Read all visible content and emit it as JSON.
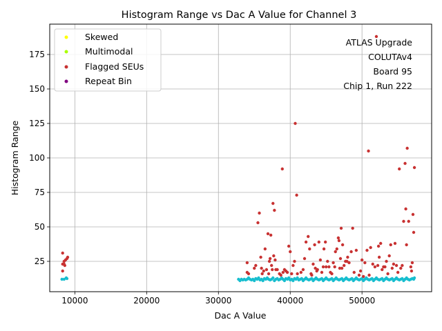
{
  "chart_data": {
    "type": "scatter",
    "title": "Histogram Range vs Dac A Value for Channel 3",
    "xlabel": "Dac A Value",
    "ylabel": "Histogram Range",
    "xlim": [
      6500,
      59700
    ],
    "ylim": [
      3,
      197
    ],
    "xticks": [
      10000,
      20000,
      30000,
      40000,
      50000
    ],
    "xtick_labels": [
      "10000",
      "20000",
      "30000",
      "40000",
      "50000"
    ],
    "yticks": [
      25,
      50,
      75,
      100,
      125,
      150,
      175
    ],
    "ytick_labels": [
      "25",
      "50",
      "75",
      "100",
      "125",
      "150",
      "175"
    ],
    "grid": true,
    "legend_position": "upper-left",
    "annotation": [
      "ATLAS Upgrade",
      "COLUTAv4",
      "Board 95",
      "Chip 1, Run 222"
    ],
    "series": [
      {
        "name": "Skewed",
        "color": "#ffff00",
        "points": []
      },
      {
        "name": "Multimodal",
        "color": "#aaff00",
        "points": []
      },
      {
        "name": "Flagged SEUs",
        "color": "#c83232",
        "points": [
          [
            8300,
            31
          ],
          [
            8300,
            23
          ],
          [
            8300,
            18
          ],
          [
            8500,
            25
          ],
          [
            8500,
            23
          ],
          [
            8600,
            22
          ],
          [
            8700,
            26
          ],
          [
            8900,
            27
          ],
          [
            9000,
            28
          ],
          [
            34000,
            24
          ],
          [
            34000,
            17
          ],
          [
            34200,
            16
          ],
          [
            35000,
            20
          ],
          [
            35200,
            22
          ],
          [
            35500,
            53
          ],
          [
            35700,
            60
          ],
          [
            35900,
            28
          ],
          [
            36000,
            20
          ],
          [
            36100,
            16
          ],
          [
            36300,
            18
          ],
          [
            36500,
            34
          ],
          [
            36700,
            19
          ],
          [
            36900,
            45
          ],
          [
            37000,
            16
          ],
          [
            37100,
            25
          ],
          [
            37200,
            27
          ],
          [
            37300,
            44
          ],
          [
            37400,
            22
          ],
          [
            37500,
            19
          ],
          [
            37600,
            67
          ],
          [
            37700,
            29
          ],
          [
            37800,
            62
          ],
          [
            37900,
            26
          ],
          [
            38000,
            19
          ],
          [
            38200,
            19
          ],
          [
            38500,
            16
          ],
          [
            38700,
            15
          ],
          [
            38900,
            92
          ],
          [
            39000,
            17
          ],
          [
            39200,
            19
          ],
          [
            39400,
            18
          ],
          [
            39600,
            17
          ],
          [
            39800,
            36
          ],
          [
            40000,
            32
          ],
          [
            40200,
            16
          ],
          [
            40400,
            22
          ],
          [
            40600,
            25
          ],
          [
            40700,
            125
          ],
          [
            40900,
            73
          ],
          [
            41000,
            16
          ],
          [
            41500,
            17
          ],
          [
            41800,
            19
          ],
          [
            42000,
            27
          ],
          [
            42200,
            39
          ],
          [
            42500,
            43
          ],
          [
            42700,
            34
          ],
          [
            42900,
            16
          ],
          [
            43000,
            15
          ],
          [
            43200,
            23
          ],
          [
            43400,
            37
          ],
          [
            43500,
            20
          ],
          [
            43700,
            18
          ],
          [
            43800,
            19
          ],
          [
            44000,
            39
          ],
          [
            44200,
            26
          ],
          [
            44400,
            17
          ],
          [
            44600,
            21
          ],
          [
            44700,
            34
          ],
          [
            44900,
            39
          ],
          [
            45000,
            21
          ],
          [
            45200,
            25
          ],
          [
            45400,
            21
          ],
          [
            45600,
            17
          ],
          [
            45800,
            16
          ],
          [
            46000,
            24
          ],
          [
            46200,
            21
          ],
          [
            46300,
            32
          ],
          [
            46500,
            34
          ],
          [
            46700,
            42
          ],
          [
            46800,
            40
          ],
          [
            46900,
            20
          ],
          [
            47000,
            27
          ],
          [
            47100,
            49
          ],
          [
            47200,
            20
          ],
          [
            47300,
            37
          ],
          [
            47500,
            22
          ],
          [
            47700,
            25
          ],
          [
            47900,
            25
          ],
          [
            48000,
            28
          ],
          [
            48200,
            24
          ],
          [
            48500,
            32
          ],
          [
            48700,
            49
          ],
          [
            48900,
            17
          ],
          [
            49200,
            33
          ],
          [
            49600,
            15
          ],
          [
            49800,
            18
          ],
          [
            50000,
            26
          ],
          [
            50200,
            14
          ],
          [
            50400,
            24
          ],
          [
            50700,
            33
          ],
          [
            50900,
            105
          ],
          [
            51000,
            15
          ],
          [
            51200,
            35
          ],
          [
            51500,
            23
          ],
          [
            51800,
            21
          ],
          [
            52000,
            188
          ],
          [
            52200,
            22
          ],
          [
            52300,
            36
          ],
          [
            52400,
            28
          ],
          [
            52600,
            38
          ],
          [
            52800,
            19
          ],
          [
            53000,
            21
          ],
          [
            53200,
            21
          ],
          [
            53400,
            25
          ],
          [
            53600,
            16
          ],
          [
            53800,
            29
          ],
          [
            54000,
            37
          ],
          [
            54200,
            20
          ],
          [
            54400,
            23
          ],
          [
            54600,
            38
          ],
          [
            54800,
            22
          ],
          [
            55000,
            17
          ],
          [
            55200,
            92
          ],
          [
            55400,
            20
          ],
          [
            55600,
            22
          ],
          [
            55800,
            54
          ],
          [
            56000,
            96
          ],
          [
            56100,
            63
          ],
          [
            56200,
            37
          ],
          [
            56300,
            107
          ],
          [
            56500,
            54
          ],
          [
            56800,
            21
          ],
          [
            56900,
            18
          ],
          [
            57000,
            24
          ],
          [
            57100,
            59
          ],
          [
            57200,
            46
          ],
          [
            57300,
            93
          ]
        ]
      },
      {
        "name": "Repeat Bin",
        "color": "#800080",
        "points": []
      },
      {
        "name": "",
        "color": "#17becf",
        "points": [
          [
            8200,
            12
          ],
          [
            8500,
            12
          ],
          [
            8800,
            13
          ],
          [
            8900,
            12.5
          ],
          [
            32800,
            12
          ],
          [
            33000,
            11
          ],
          [
            33200,
            12
          ],
          [
            33400,
            11.5
          ],
          [
            33600,
            12
          ],
          [
            33800,
            11.5
          ],
          [
            34000,
            12
          ],
          [
            34200,
            13
          ],
          [
            34400,
            12
          ],
          [
            34600,
            11.5
          ],
          [
            34800,
            12
          ],
          [
            35000,
            11
          ],
          [
            35200,
            12.5
          ],
          [
            35400,
            12
          ],
          [
            35600,
            13
          ],
          [
            35800,
            11.5
          ],
          [
            36000,
            12
          ],
          [
            36200,
            11
          ],
          [
            36400,
            12.5
          ],
          [
            36600,
            12
          ],
          [
            36800,
            13
          ],
          [
            37000,
            12
          ],
          [
            37200,
            11.5
          ],
          [
            37400,
            12
          ],
          [
            37600,
            13
          ],
          [
            37800,
            11
          ],
          [
            38000,
            12
          ],
          [
            38200,
            12.5
          ],
          [
            38400,
            11.5
          ],
          [
            38600,
            12
          ],
          [
            38800,
            13
          ],
          [
            39000,
            12
          ],
          [
            39200,
            11
          ],
          [
            39400,
            12.5
          ],
          [
            39600,
            12
          ],
          [
            39800,
            13
          ],
          [
            40000,
            11.5
          ],
          [
            40200,
            12
          ],
          [
            40400,
            11
          ],
          [
            40600,
            12.5
          ],
          [
            40800,
            12
          ],
          [
            41000,
            13
          ],
          [
            41200,
            11.5
          ],
          [
            41400,
            12
          ],
          [
            41600,
            12.5
          ],
          [
            41800,
            11
          ],
          [
            42000,
            12
          ],
          [
            42200,
            13
          ],
          [
            42400,
            12
          ],
          [
            42600,
            11.5
          ],
          [
            42800,
            12
          ],
          [
            43000,
            12.5
          ],
          [
            43200,
            11
          ],
          [
            43400,
            12
          ],
          [
            43600,
            13
          ],
          [
            43800,
            12
          ],
          [
            44000,
            11.5
          ],
          [
            44200,
            12
          ],
          [
            44400,
            12.5
          ],
          [
            44600,
            11
          ],
          [
            44800,
            12
          ],
          [
            45000,
            13
          ],
          [
            45200,
            12
          ],
          [
            45400,
            11.5
          ],
          [
            45600,
            12
          ],
          [
            45800,
            12.5
          ],
          [
            46000,
            11
          ],
          [
            46200,
            12
          ],
          [
            46400,
            13
          ],
          [
            46600,
            12
          ],
          [
            46800,
            11.5
          ],
          [
            47000,
            12
          ],
          [
            47200,
            12.5
          ],
          [
            47400,
            11
          ],
          [
            47600,
            12
          ],
          [
            47800,
            13
          ],
          [
            48000,
            12
          ],
          [
            48200,
            11.5
          ],
          [
            48400,
            12
          ],
          [
            48600,
            12.5
          ],
          [
            48800,
            11
          ],
          [
            49000,
            12
          ],
          [
            49200,
            13
          ],
          [
            49400,
            12
          ],
          [
            49600,
            11.5
          ],
          [
            49800,
            12
          ],
          [
            50000,
            12.5
          ],
          [
            50200,
            11
          ],
          [
            50400,
            12
          ],
          [
            50600,
            13
          ],
          [
            50800,
            12
          ],
          [
            51000,
            11.5
          ],
          [
            51200,
            12
          ],
          [
            51400,
            12.5
          ],
          [
            51600,
            11
          ],
          [
            51800,
            12
          ],
          [
            52000,
            13
          ],
          [
            52200,
            12
          ],
          [
            52400,
            11.5
          ],
          [
            52600,
            12
          ],
          [
            52800,
            12.5
          ],
          [
            53000,
            11
          ],
          [
            53200,
            12
          ],
          [
            53400,
            13
          ],
          [
            53600,
            12
          ],
          [
            53800,
            11.5
          ],
          [
            54000,
            12
          ],
          [
            54200,
            12.5
          ],
          [
            54400,
            11
          ],
          [
            54600,
            12
          ],
          [
            54800,
            13
          ],
          [
            55000,
            12
          ],
          [
            55200,
            11.5
          ],
          [
            55400,
            12
          ],
          [
            55600,
            12.5
          ],
          [
            55800,
            11
          ],
          [
            56000,
            12
          ],
          [
            56200,
            13
          ],
          [
            56400,
            12
          ],
          [
            56600,
            11.5
          ],
          [
            56800,
            12
          ],
          [
            57000,
            12.5
          ],
          [
            57200,
            12
          ],
          [
            57300,
            13
          ]
        ]
      }
    ]
  }
}
